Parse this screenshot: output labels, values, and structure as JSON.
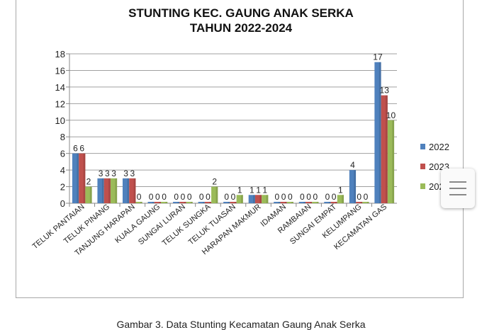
{
  "chart_data": {
    "type": "bar",
    "title": "STUNTING KEC. GAUNG ANAK SERKA\nTAHUN 2022-2024",
    "title_lines": [
      "STUNTING KEC. GAUNG ANAK SERKA",
      "TAHUN 2022-2024"
    ],
    "categories": [
      "TELUK PANTAIAN",
      "TELUK PINANG",
      "TANJUNG HARAPAN",
      "KUALA GAUNG",
      "SUNGAI LURAN",
      "TELUK SUNGKA",
      "TELUK TUASAN",
      "HARAPAN MAKMUR",
      "IDAMAN",
      "RAMBAIAN",
      "SUNGAI EMPAT",
      "KELUMPANG",
      "KECAMATAN GAS"
    ],
    "series": [
      {
        "name": "2022",
        "color": "#4f81bd",
        "values": [
          6,
          3,
          3,
          0,
          0,
          0,
          0,
          1,
          0,
          0,
          0,
          4,
          17
        ]
      },
      {
        "name": "2023",
        "color": "#c0504d",
        "values": [
          6,
          3,
          3,
          0,
          0,
          0,
          0,
          1,
          0,
          0,
          0,
          0,
          13
        ]
      },
      {
        "name": "2024",
        "color": "#9bbb59",
        "values": [
          2,
          3,
          0,
          0,
          0,
          2,
          1,
          1,
          0,
          0,
          1,
          0,
          10
        ]
      }
    ],
    "ylim": [
      0,
      18
    ],
    "yticks": [
      0,
      2,
      4,
      6,
      8,
      10,
      12,
      14,
      16,
      18
    ],
    "grid": true,
    "legend": "right",
    "data_labels": true
  },
  "caption": "Gambar 3. Data Stunting Kecamatan Gaung Anak Serka"
}
